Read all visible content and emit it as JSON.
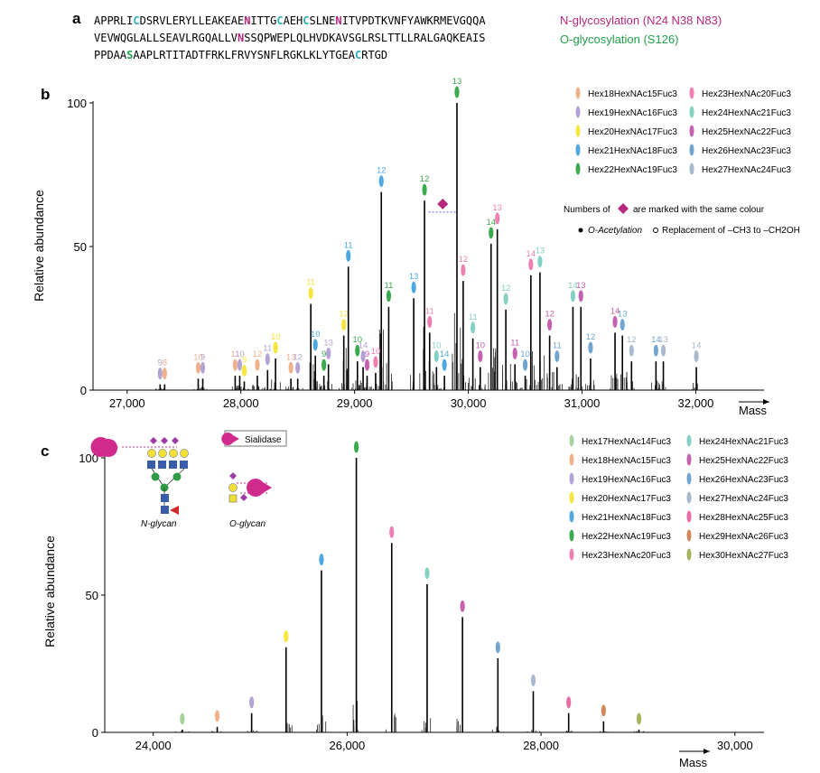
{
  "figure": {
    "panel_a": {
      "label": "a",
      "sequence_lines": [
        [
          [
            "APPRLI",
            ""
          ],
          [
            "C",
            "c"
          ],
          [
            "DSRVLERYLLEAKEAE",
            ""
          ],
          [
            "N",
            "n"
          ],
          [
            "ITTG",
            ""
          ],
          [
            "C",
            "c"
          ],
          [
            "AEH",
            ""
          ],
          [
            "C",
            "c"
          ],
          [
            "SLNE",
            ""
          ],
          [
            "N",
            "n"
          ],
          [
            "ITVPDTKVNFYAWKRMEVGQQA",
            ""
          ]
        ],
        [
          [
            "VEVWQGLALLSEAVLRGQALLV",
            ""
          ],
          [
            "N",
            "n"
          ],
          [
            "SSQPWEPLQLHVDKAVSGLRSLTTLLRALGAQKEAIS",
            ""
          ]
        ],
        [
          [
            "PPDAA",
            ""
          ],
          [
            "S",
            "o"
          ],
          [
            "AAPLRTITADTFRKLFRVYSNFLRGKLKLYTGEA",
            ""
          ],
          [
            "C",
            "c"
          ],
          [
            "RTGD",
            ""
          ]
        ]
      ],
      "n_glyco_label": "N-glycosylation (N24 N38 N83)",
      "o_glyco_label": "O-glycosylation (S126)",
      "colors": {
        "n": "#b5287e",
        "o": "#1fa149",
        "c": "#2ab0b8"
      }
    },
    "panel_b": {
      "label": "b"
    },
    "panel_c": {
      "label": "c",
      "sialidase_label": "Sialidase",
      "n_glycan_label": "N-glycan",
      "o_glycan_label": "O-glycan"
    }
  },
  "chart_data": [
    {
      "type": "spectrum",
      "panel": "b",
      "xlabel": "Mass",
      "ylabel": "Relative abundance",
      "xlim": [
        26700,
        32600
      ],
      "ylim": [
        0,
        100
      ],
      "xticks": [
        27000,
        28000,
        29000,
        30000,
        31000,
        32000
      ],
      "yticks": [
        0,
        50,
        100
      ],
      "glycans": [
        {
          "name": "Hex18HexNAc15Fuc3",
          "color": "#f0b08a"
        },
        {
          "name": "Hex19HexNAc16Fuc3",
          "color": "#b4a3d4"
        },
        {
          "name": "Hex20HexNAc17Fuc3",
          "color": "#f6e53a"
        },
        {
          "name": "Hex21HexNAc18Fuc3",
          "color": "#4da8e0"
        },
        {
          "name": "Hex22HexNAc19Fuc3",
          "color": "#3aaa4e"
        },
        {
          "name": "Hex23HexNAc20Fuc3",
          "color": "#ef7fb2"
        },
        {
          "name": "Hex24HexNAc21Fuc3",
          "color": "#84d1c4"
        },
        {
          "name": "Hex25HexNAc22Fuc3",
          "color": "#c660b0"
        },
        {
          "name": "Hex26HexNAc23Fuc3",
          "color": "#6fa5cf"
        },
        {
          "name": "Hex27HexNAc24Fuc3",
          "color": "#a8b8cd"
        }
      ],
      "peaks": [
        {
          "mass": 27290,
          "y": 2,
          "label": "9",
          "c": 1
        },
        {
          "mass": 27330,
          "y": 2,
          "label": "8",
          "c": 0
        },
        {
          "mass": 27625,
          "y": 4,
          "label": "10",
          "c": 0
        },
        {
          "mass": 27665,
          "y": 4,
          "label": "9",
          "c": 1
        },
        {
          "mass": 27950,
          "y": 5,
          "label": "11",
          "c": 0
        },
        {
          "mass": 27990,
          "y": 5,
          "label": "10",
          "c": 1
        },
        {
          "mass": 28030,
          "y": 3,
          "label": "9",
          "c": 2
        },
        {
          "mass": 28145,
          "y": 5,
          "label": "12",
          "c": 0
        },
        {
          "mass": 28235,
          "y": 7,
          "label": "11",
          "c": 1
        },
        {
          "mass": 28305,
          "y": 11,
          "label": "10",
          "c": 2
        },
        {
          "mass": 28440,
          "y": 4,
          "label": "13",
          "c": 0
        },
        {
          "mass": 28500,
          "y": 4,
          "label": "12",
          "c": 1
        },
        {
          "mass": 28615,
          "y": 30,
          "label": "11",
          "c": 2
        },
        {
          "mass": 28655,
          "y": 12,
          "label": "10",
          "c": 3
        },
        {
          "mass": 28770,
          "y": 9,
          "label": "13",
          "c": 1
        },
        {
          "mass": 28730,
          "y": 5,
          "label": "9",
          "c": 4
        },
        {
          "mass": 28905,
          "y": 19,
          "label": "12",
          "c": 2
        },
        {
          "mass": 28945,
          "y": 43,
          "label": "11",
          "c": 3
        },
        {
          "mass": 29025,
          "y": 10,
          "label": "10",
          "c": 4
        },
        {
          "mass": 29075,
          "y": 8,
          "label": "14",
          "c": 1
        },
        {
          "mass": 29110,
          "y": 5,
          "label": "9",
          "c": 7
        },
        {
          "mass": 29185,
          "y": 6,
          "label": "10",
          "c": 5
        },
        {
          "mass": 29235,
          "y": 69,
          "label": "12",
          "c": 3
        },
        {
          "mass": 29300,
          "y": 29,
          "label": "11",
          "c": 4
        },
        {
          "mass": 29520,
          "y": 32,
          "label": "13",
          "c": 3
        },
        {
          "mass": 29615,
          "y": 66,
          "label": "12",
          "c": 4
        },
        {
          "mass": 29660,
          "y": 20,
          "label": "11",
          "c": 5
        },
        {
          "mass": 29720,
          "y": 8,
          "label": "10",
          "c": 6
        },
        {
          "mass": 29790,
          "y": 5,
          "label": "14",
          "c": 3
        },
        {
          "mass": 29900,
          "y": 100,
          "label": "13",
          "c": 4
        },
        {
          "mass": 29955,
          "y": 38,
          "label": "12",
          "c": 5
        },
        {
          "mass": 30040,
          "y": 18,
          "label": "11",
          "c": 6
        },
        {
          "mass": 30105,
          "y": 8,
          "label": "10",
          "c": 7
        },
        {
          "mass": 30200,
          "y": 51,
          "label": "14",
          "c": 4
        },
        {
          "mass": 30255,
          "y": 56,
          "label": "13",
          "c": 5
        },
        {
          "mass": 30330,
          "y": 28,
          "label": "12",
          "c": 6
        },
        {
          "mass": 30410,
          "y": 9,
          "label": "11",
          "c": 7
        },
        {
          "mass": 30500,
          "y": 5,
          "label": "10",
          "c": 8
        },
        {
          "mass": 30550,
          "y": 40,
          "label": "14",
          "c": 5
        },
        {
          "mass": 30630,
          "y": 41,
          "label": "13",
          "c": 6
        },
        {
          "mass": 30715,
          "y": 19,
          "label": "12",
          "c": 7
        },
        {
          "mass": 30780,
          "y": 8,
          "label": "11",
          "c": 8
        },
        {
          "mass": 30920,
          "y": 29,
          "label": "14",
          "c": 6
        },
        {
          "mass": 30990,
          "y": 29,
          "label": "13",
          "c": 7
        },
        {
          "mass": 31075,
          "y": 11,
          "label": "12",
          "c": 8
        },
        {
          "mass": 31290,
          "y": 20,
          "label": "14",
          "c": 7
        },
        {
          "mass": 31355,
          "y": 19,
          "label": "13",
          "c": 8
        },
        {
          "mass": 31435,
          "y": 10,
          "label": "12",
          "c": 9
        },
        {
          "mass": 31650,
          "y": 10,
          "label": "14",
          "c": 8
        },
        {
          "mass": 31715,
          "y": 10,
          "label": "13",
          "c": 9
        },
        {
          "mass": 32005,
          "y": 8,
          "label": "14",
          "c": 9
        }
      ],
      "legend_note_prefix": "Numbers of",
      "legend_note_suffix": "are marked with the same colour",
      "modification_labels": {
        "acetyl": "O-Acetylation",
        "replacement": "Replacement of –CH3 to –CH2OH"
      }
    },
    {
      "type": "spectrum",
      "panel": "c",
      "xlabel": "Mass",
      "ylabel": "Relative abundance",
      "xlim": [
        23500,
        30300
      ],
      "ylim": [
        0,
        100
      ],
      "xticks": [
        24000,
        26000,
        28000,
        30000
      ],
      "yticks": [
        0,
        50,
        100
      ],
      "glycans": [
        {
          "name": "Hex17HexNAc14Fuc3",
          "color": "#a6d39a"
        },
        {
          "name": "Hex18HexNAc15Fuc3",
          "color": "#f0b08a"
        },
        {
          "name": "Hex19HexNAc16Fuc3",
          "color": "#b4a3d4"
        },
        {
          "name": "Hex20HexNAc17Fuc3",
          "color": "#f6e53a"
        },
        {
          "name": "Hex21HexNAc18Fuc3",
          "color": "#4da8e0"
        },
        {
          "name": "Hex22HexNAc19Fuc3",
          "color": "#3aaa4e"
        },
        {
          "name": "Hex23HexNAc20Fuc3",
          "color": "#ef7fb2"
        },
        {
          "name": "Hex24HexNAc21Fuc3",
          "color": "#84d1c4"
        },
        {
          "name": "Hex25HexNAc22Fuc3",
          "color": "#c660b0"
        },
        {
          "name": "Hex26HexNAc23Fuc3",
          "color": "#6fa5cf"
        },
        {
          "name": "Hex27HexNAc24Fuc3",
          "color": "#a8b8cd"
        },
        {
          "name": "Hex28HexNAc25Fuc3",
          "color": "#e86ea1"
        },
        {
          "name": "Hex29HexNAc26Fuc3",
          "color": "#d08a5a"
        },
        {
          "name": "Hex30HexNAc27Fuc3",
          "color": "#a6b35a"
        }
      ],
      "peaks": [
        {
          "mass": 24300,
          "y": 1,
          "c": 0
        },
        {
          "mass": 24660,
          "y": 2,
          "c": 1
        },
        {
          "mass": 25015,
          "y": 7,
          "c": 2
        },
        {
          "mass": 25370,
          "y": 31,
          "c": 3
        },
        {
          "mass": 25735,
          "y": 59,
          "c": 4
        },
        {
          "mass": 26095,
          "y": 100,
          "c": 5
        },
        {
          "mass": 26460,
          "y": 69,
          "c": 6
        },
        {
          "mass": 26825,
          "y": 54,
          "c": 7
        },
        {
          "mass": 27190,
          "y": 42,
          "c": 8
        },
        {
          "mass": 27555,
          "y": 27,
          "c": 9
        },
        {
          "mass": 27920,
          "y": 15,
          "c": 10
        },
        {
          "mass": 28285,
          "y": 7,
          "c": 11
        },
        {
          "mass": 28645,
          "y": 4,
          "c": 12
        },
        {
          "mass": 29010,
          "y": 1,
          "c": 13
        }
      ]
    }
  ]
}
